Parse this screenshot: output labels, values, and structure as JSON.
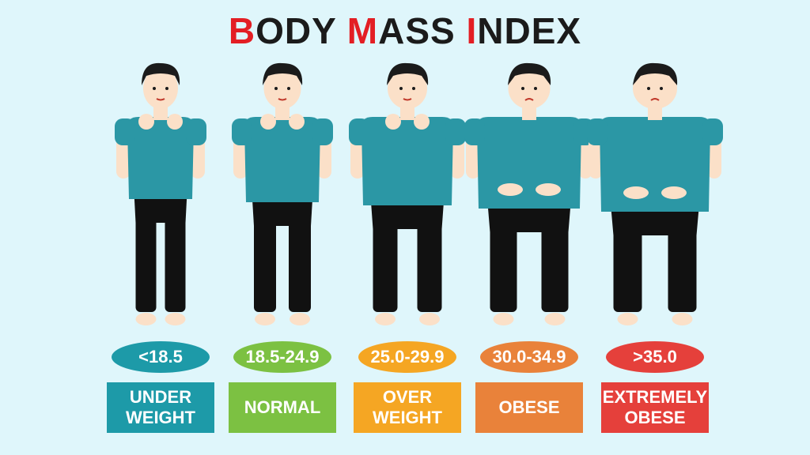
{
  "title": {
    "parts": [
      {
        "cap": "B",
        "rest": "ODY "
      },
      {
        "cap": "M",
        "rest": "ASS "
      },
      {
        "cap": "I",
        "rest": "NDEX"
      }
    ]
  },
  "categories": [
    {
      "range": "<18.5",
      "label": "UNDER\nWEIGHT",
      "color": "#1d9aa8",
      "figure": "underweight-figure"
    },
    {
      "range": "18.5-24.9",
      "label": "NORMAL",
      "color": "#7cc142",
      "figure": "normal-figure"
    },
    {
      "range": "25.0-29.9",
      "label": "OVER\nWEIGHT",
      "color": "#f5a623",
      "figure": "overweight-figure"
    },
    {
      "range": "30.0-34.9",
      "label": "OBESE",
      "color": "#e9823a",
      "figure": "obese-figure"
    },
    {
      "range": ">35.0",
      "label": "EXTREMELY\nOBESE",
      "color": "#e5403b",
      "figure": "extremely-obese-figure"
    }
  ],
  "colors": {
    "skin": "#fbe0c8",
    "hair": "#1b1b1b",
    "shirt": "#2b97a5",
    "pants": "#111111",
    "title_accent": "#e31e24"
  }
}
